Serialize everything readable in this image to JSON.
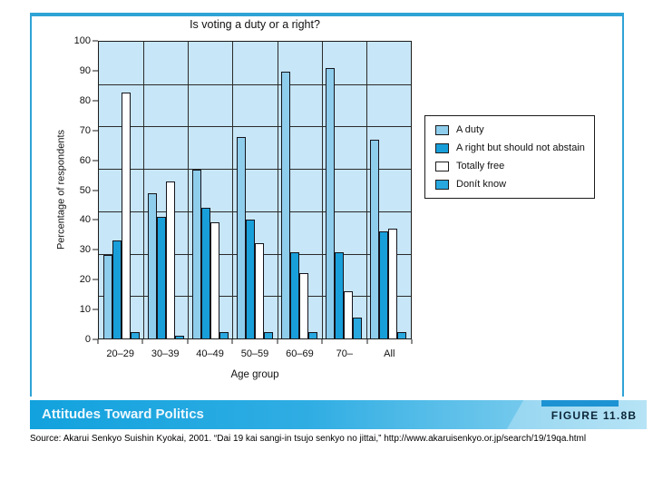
{
  "figure": {
    "band_title": "Attitudes Toward Politics",
    "figure_label": "FIGURE 11.8B",
    "source": "Source: Akarui Senkyo Suishin Kyokai, 2001. “Dai 19 kai sangi-in tsujo senkyo no jittai,” http://www.akaruisenkyo.or.jp/search/19/19qa.html"
  },
  "colors": {
    "figure_border": "#2fa3d6",
    "plot_background": "#c7e6f7",
    "band_gradient_start": "#12a2de",
    "band_gradient_end": "#9bd9f2",
    "band_strip": "#1e93d3",
    "figure_label_text": "#0c2538"
  },
  "chart_data": {
    "type": "bar",
    "title": "Is voting a duty or a right?",
    "xlabel": "Age group",
    "ylabel": "Percentage of respondents",
    "categories": [
      "20–29",
      "30–39",
      "40–49",
      "50–59",
      "60–69",
      "70–",
      "All"
    ],
    "series": [
      {
        "name": "A duty",
        "color": "#8fcdec",
        "values": [
          28,
          49,
          57,
          68,
          90,
          91,
          67
        ]
      },
      {
        "name": "A right but should not abstain",
        "color": "#189fda",
        "values": [
          33,
          41,
          44,
          40,
          29,
          29,
          36
        ]
      },
      {
        "name": "Totally free",
        "color": "#ffffff",
        "values": [
          83,
          53,
          39,
          32,
          22,
          16,
          37
        ]
      },
      {
        "name": "Donít know",
        "color": "#28a8df",
        "values": [
          2,
          1,
          2,
          2,
          2,
          7,
          2
        ]
      }
    ],
    "ylim": [
      0,
      100
    ],
    "ytick_step": 10,
    "gridline_divisions": 7,
    "grid": true,
    "legend_position": "right"
  }
}
